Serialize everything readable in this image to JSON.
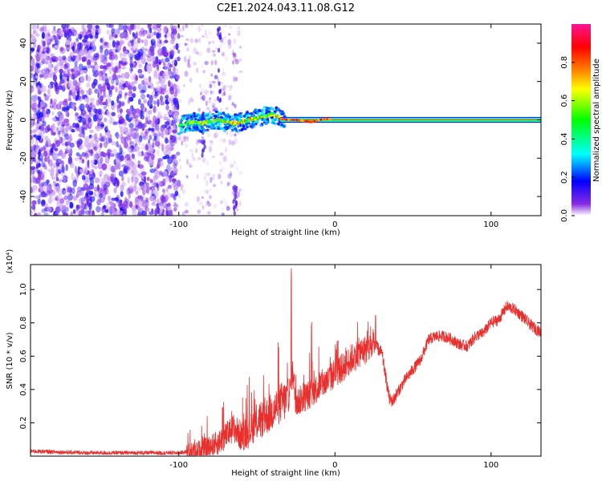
{
  "title": "C2E1.2024.043.11.08.G12",
  "chart_data": [
    {
      "type": "heatmap",
      "xlabel": "Height of straight line (km)",
      "ylabel": "Frequency (Hz)",
      "xlim": [
        -195,
        132
      ],
      "ylim": [
        -50,
        50
      ],
      "xticks": [
        -100,
        0,
        100
      ],
      "yticks": [
        -40,
        -20,
        0,
        20,
        40
      ],
      "colorbar": {
        "label": "Normalized spectral amplitude",
        "range": [
          0,
          1
        ],
        "ticks": [
          0.0,
          0.2,
          0.4,
          0.6,
          0.8
        ],
        "tick_labels": [
          "0.0",
          "0.2",
          "0.4",
          "0.6",
          "0.8"
        ],
        "colors": [
          "#ffffff",
          "#8a2be2",
          "#0000ff",
          "#00ffff",
          "#00ff00",
          "#ffff00",
          "#ff8000",
          "#ff0000",
          "#ff1493"
        ]
      },
      "noise_region_km": [
        -195,
        -100
      ],
      "scatter_region_km": [
        -100,
        -60
      ],
      "track": {
        "x": [
          -100,
          -95,
          -90,
          -85,
          -80,
          -75,
          -70,
          -65,
          -60,
          -55,
          -50,
          -45,
          -40,
          -35,
          -30,
          -25,
          -20,
          -15,
          -10,
          -5,
          0,
          50,
          100,
          132
        ],
        "y": [
          -3,
          -2,
          -1,
          -2,
          -1,
          0,
          -1,
          -2,
          -1,
          0,
          1,
          2,
          3,
          1,
          0,
          0,
          -1,
          -2,
          0,
          1,
          0,
          0,
          0,
          0
        ]
      }
    },
    {
      "type": "line",
      "xlabel": "Height of straight line (km)",
      "ylabel": "SNR (10 * v/v)",
      "y_multiplier": "(x10⁴)",
      "xlim": [
        -195,
        132
      ],
      "ylim": [
        0,
        1.15
      ],
      "xticks": [
        -100,
        0,
        100
      ],
      "yticks": [
        0.2,
        0.4,
        0.6,
        0.8,
        1.0
      ],
      "color": "#e8312f",
      "x": [
        -195,
        -160,
        -120,
        -100,
        -90,
        -85,
        -80,
        -75,
        -70,
        -65,
        -60,
        -55,
        -50,
        -45,
        -40,
        -35,
        -30,
        -27,
        -25,
        -20,
        -15,
        -10,
        -5,
        0,
        5,
        10,
        15,
        20,
        25,
        27,
        30,
        33,
        35,
        37,
        40,
        45,
        50,
        55,
        60,
        65,
        70,
        75,
        80,
        85,
        90,
        95,
        100,
        105,
        110,
        115,
        120,
        125,
        132
      ],
      "values": [
        0.03,
        0.02,
        0.02,
        0.02,
        0.03,
        0.04,
        0.06,
        0.08,
        0.12,
        0.17,
        0.12,
        0.15,
        0.2,
        0.23,
        0.27,
        0.32,
        0.34,
        0.5,
        0.32,
        0.35,
        0.38,
        0.42,
        0.45,
        0.5,
        0.53,
        0.58,
        0.62,
        0.64,
        0.66,
        0.65,
        0.62,
        0.45,
        0.34,
        0.33,
        0.38,
        0.46,
        0.52,
        0.58,
        0.7,
        0.72,
        0.72,
        0.7,
        0.67,
        0.66,
        0.72,
        0.74,
        0.8,
        0.82,
        0.9,
        0.88,
        0.84,
        0.79,
        0.74
      ],
      "spikes": [
        {
          "x": -28,
          "y": 1.15
        },
        {
          "x": -15,
          "y": 0.85
        },
        {
          "x": 26,
          "y": 0.88
        },
        {
          "x": -72,
          "y": 0.3
        }
      ]
    }
  ]
}
